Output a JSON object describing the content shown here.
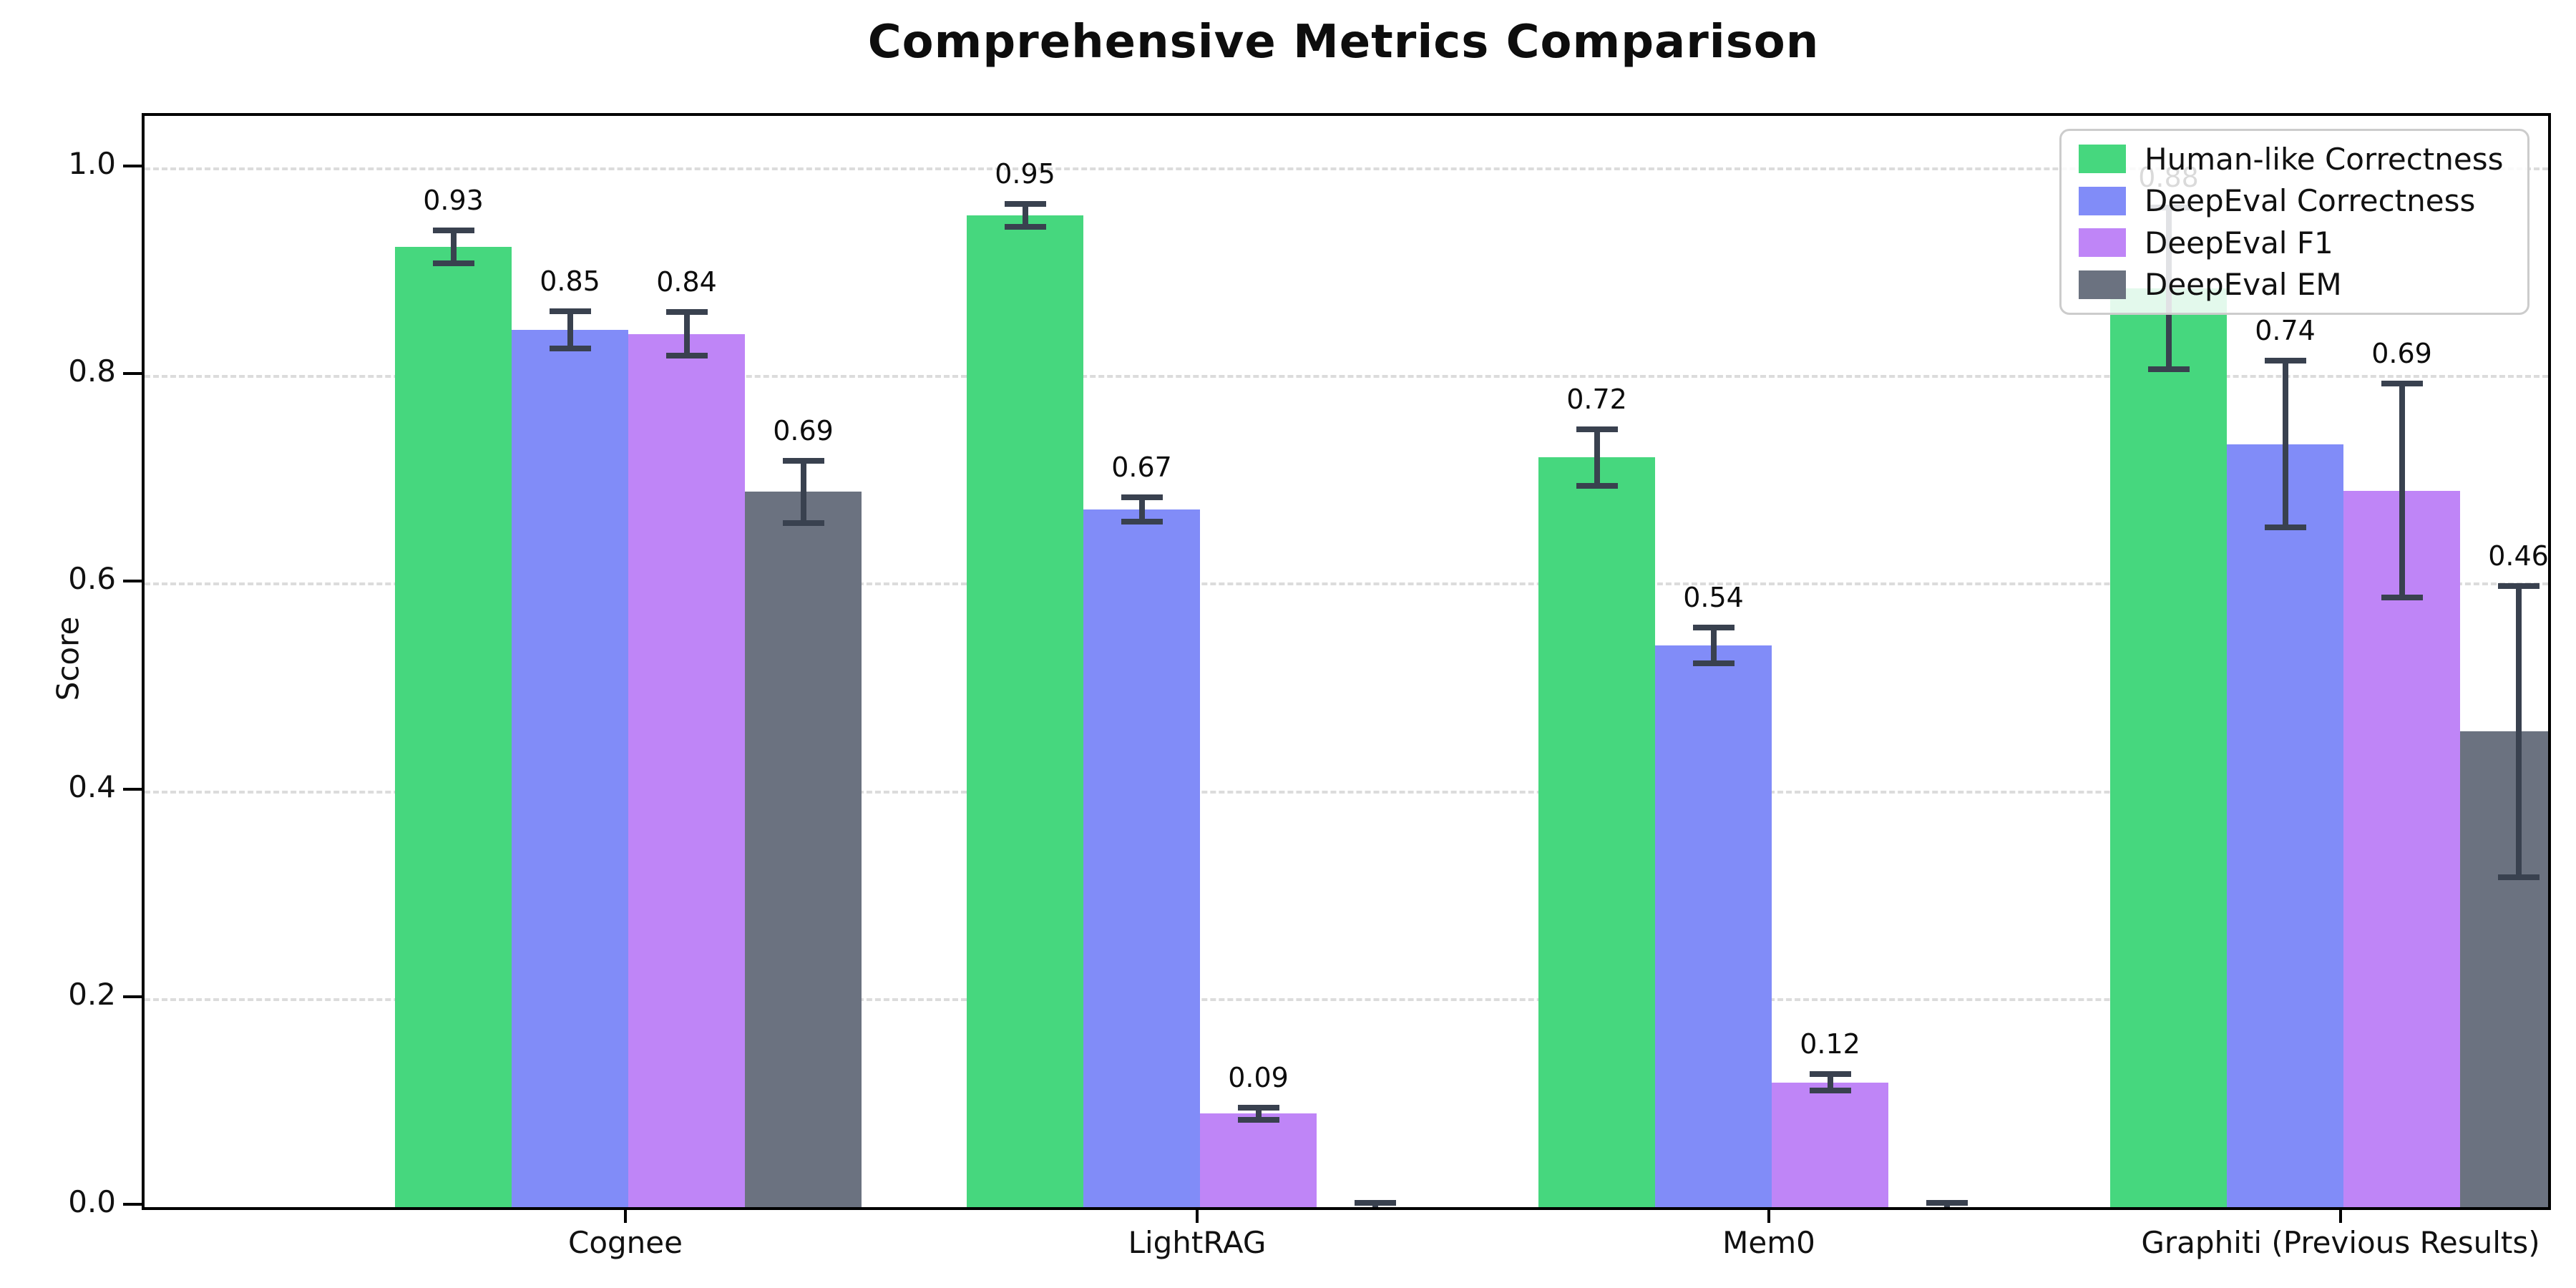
{
  "chart_data": {
    "type": "bar",
    "title": "Comprehensive Metrics Comparison",
    "xlabel": "",
    "ylabel": "Score",
    "categories": [
      "Cognee",
      "LightRAG",
      "Mem0",
      "Graphiti (Previous Results)"
    ],
    "y_ticks": [
      {
        "value": 0.0,
        "label": "0.0"
      },
      {
        "value": 0.2,
        "label": "0.2"
      },
      {
        "value": 0.4,
        "label": "0.4"
      },
      {
        "value": 0.6,
        "label": "0.6"
      },
      {
        "value": 0.8,
        "label": "0.8"
      },
      {
        "value": 1.0,
        "label": "1.0"
      }
    ],
    "ylim": [
      0,
      1.05
    ],
    "grid": "horizontal-dashed",
    "legend_position": "upper-right",
    "error_bars": true,
    "series": [
      {
        "name": "Human-like Correctness",
        "color": "#46d77e",
        "values": [
          0.925,
          0.955,
          0.722,
          0.885
        ],
        "errors": [
          0.016,
          0.011,
          0.027,
          0.078
        ],
        "labels": [
          "0.93",
          "0.95",
          "0.72",
          "0.88"
        ]
      },
      {
        "name": "DeepEval Correctness",
        "color": "#818cf8",
        "values": [
          0.845,
          0.672,
          0.541,
          0.735
        ],
        "errors": [
          0.018,
          0.012,
          0.017,
          0.08
        ],
        "labels": [
          "0.85",
          "0.67",
          "0.54",
          "0.74"
        ]
      },
      {
        "name": "DeepEval F1",
        "color": "#bf85f7",
        "values": [
          0.841,
          0.09,
          0.12,
          0.69
        ],
        "errors": [
          0.021,
          0.006,
          0.008,
          0.103
        ],
        "labels": [
          "0.84",
          "0.09",
          "0.12",
          "0.69"
        ]
      },
      {
        "name": "DeepEval EM",
        "color": "#6b7280",
        "values": [
          0.689,
          0.0,
          0.0,
          0.458
        ],
        "errors": [
          0.03,
          0.004,
          0.004,
          0.14
        ],
        "labels": [
          "0.69",
          "",
          "",
          "0.46"
        ]
      }
    ],
    "colors": {
      "errorbar": "#39414f",
      "gridline": "#dcdcdc",
      "axis": "#000000",
      "text": "#111111"
    }
  }
}
